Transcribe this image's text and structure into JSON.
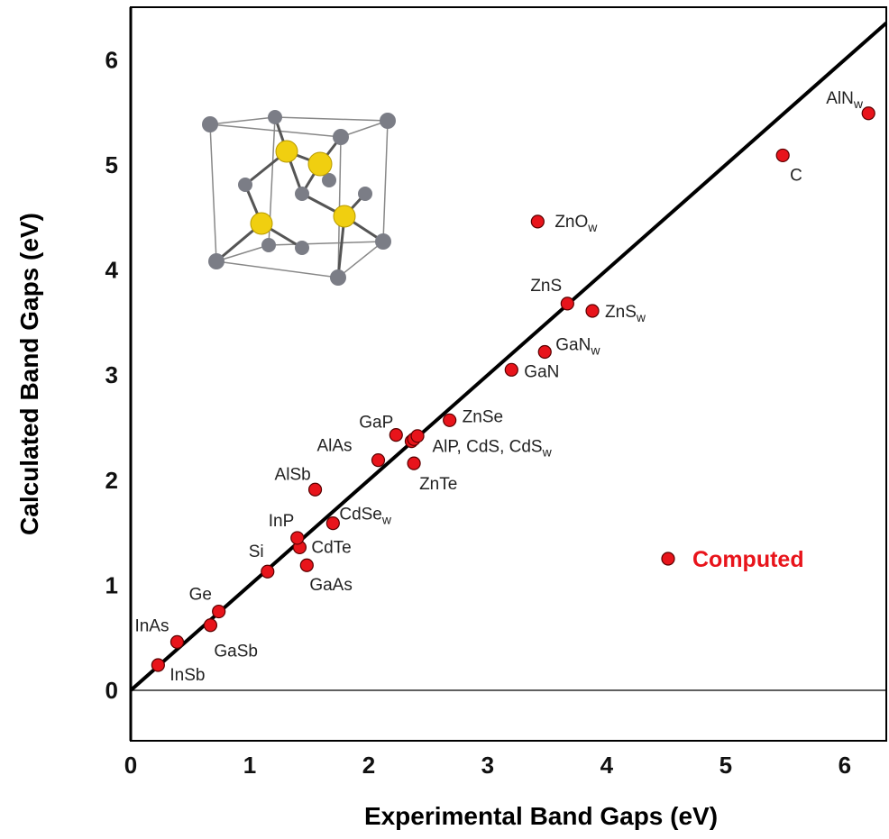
{
  "chart_data": {
    "type": "scatter",
    "xlabel": "Experimental Band Gaps (eV)",
    "ylabel": "Calculated Band Gaps (eV)",
    "xlim": [
      0,
      6.35
    ],
    "ylim": [
      -0.48,
      6.5
    ],
    "xticks": [
      0,
      1,
      2,
      3,
      4,
      5,
      6
    ],
    "yticks": [
      0,
      1,
      2,
      3,
      4,
      5,
      6
    ],
    "series": [
      {
        "name": "Computed",
        "color": "#e8141b",
        "x": [
          0.23,
          0.39,
          0.74,
          0.67,
          1.15,
          1.48,
          1.42,
          1.4,
          1.7,
          1.55,
          2.08,
          2.23,
          2.36,
          2.38,
          2.41,
          2.38,
          2.68,
          3.2,
          3.48,
          3.67,
          3.88,
          3.42,
          5.48,
          6.2
        ],
        "values": [
          0.24,
          0.46,
          0.75,
          0.62,
          1.13,
          1.19,
          1.36,
          1.45,
          1.59,
          1.91,
          2.19,
          2.43,
          2.37,
          2.39,
          2.42,
          2.16,
          2.57,
          3.05,
          3.22,
          3.68,
          3.61,
          4.46,
          5.09,
          5.49
        ],
        "labels": [
          "InSb",
          "InAs",
          "Ge",
          "GaSb",
          "Si",
          "GaAs",
          "CdTe",
          "InP",
          "CdSe",
          "AlSb",
          "AlAs",
          "GaP",
          "AlP, CdS, CdS",
          null,
          null,
          "ZnTe",
          "ZnSe",
          "GaN",
          "GaN",
          "ZnS",
          "ZnS",
          "ZnO",
          "C",
          "AlN"
        ],
        "label_subscripts": [
          null,
          null,
          null,
          null,
          null,
          null,
          null,
          null,
          "w",
          null,
          null,
          null,
          "w",
          null,
          null,
          null,
          null,
          null,
          "w",
          null,
          "w",
          "w",
          null,
          "w"
        ]
      }
    ]
  }
}
